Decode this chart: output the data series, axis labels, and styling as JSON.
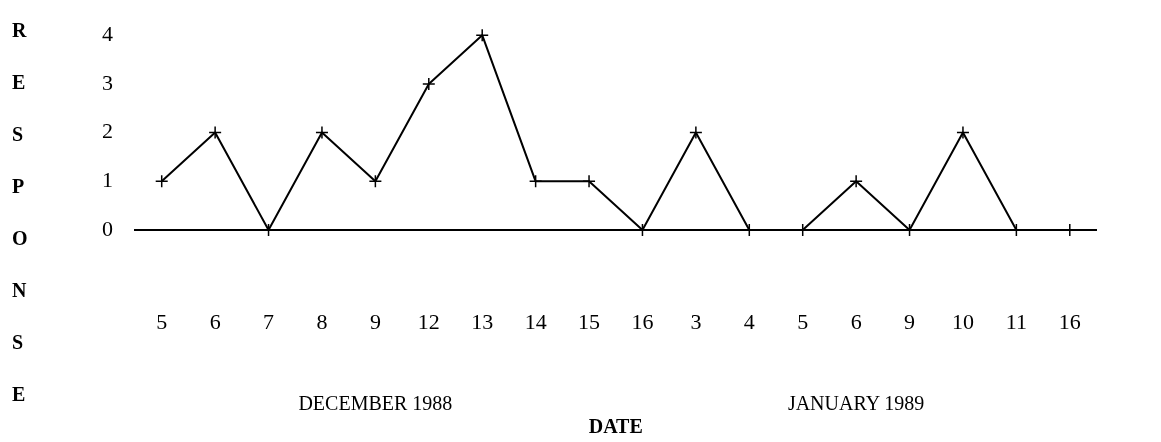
{
  "chart_data": {
    "type": "line",
    "xlabel": "DATE",
    "ylabel": "RESPONSE",
    "categories": [
      "5",
      "6",
      "7",
      "8",
      "9",
      "12",
      "13",
      "14",
      "15",
      "16",
      "3",
      "4",
      "5",
      "6",
      "9",
      "10",
      "11",
      "16"
    ],
    "values": [
      1,
      2,
      0,
      2,
      1,
      3,
      4,
      1,
      1,
      0,
      2,
      0,
      0,
      1,
      0,
      2,
      0,
      0
    ],
    "color": "#000000",
    "marker": "cross",
    "line_style": "solid",
    "ylim": [
      0,
      4
    ],
    "yticks": [
      0,
      1,
      2,
      3,
      4
    ],
    "grid": false,
    "legend": false,
    "annotations": [
      "DECEMBER 1988",
      "JANUARY 1989"
    ]
  }
}
